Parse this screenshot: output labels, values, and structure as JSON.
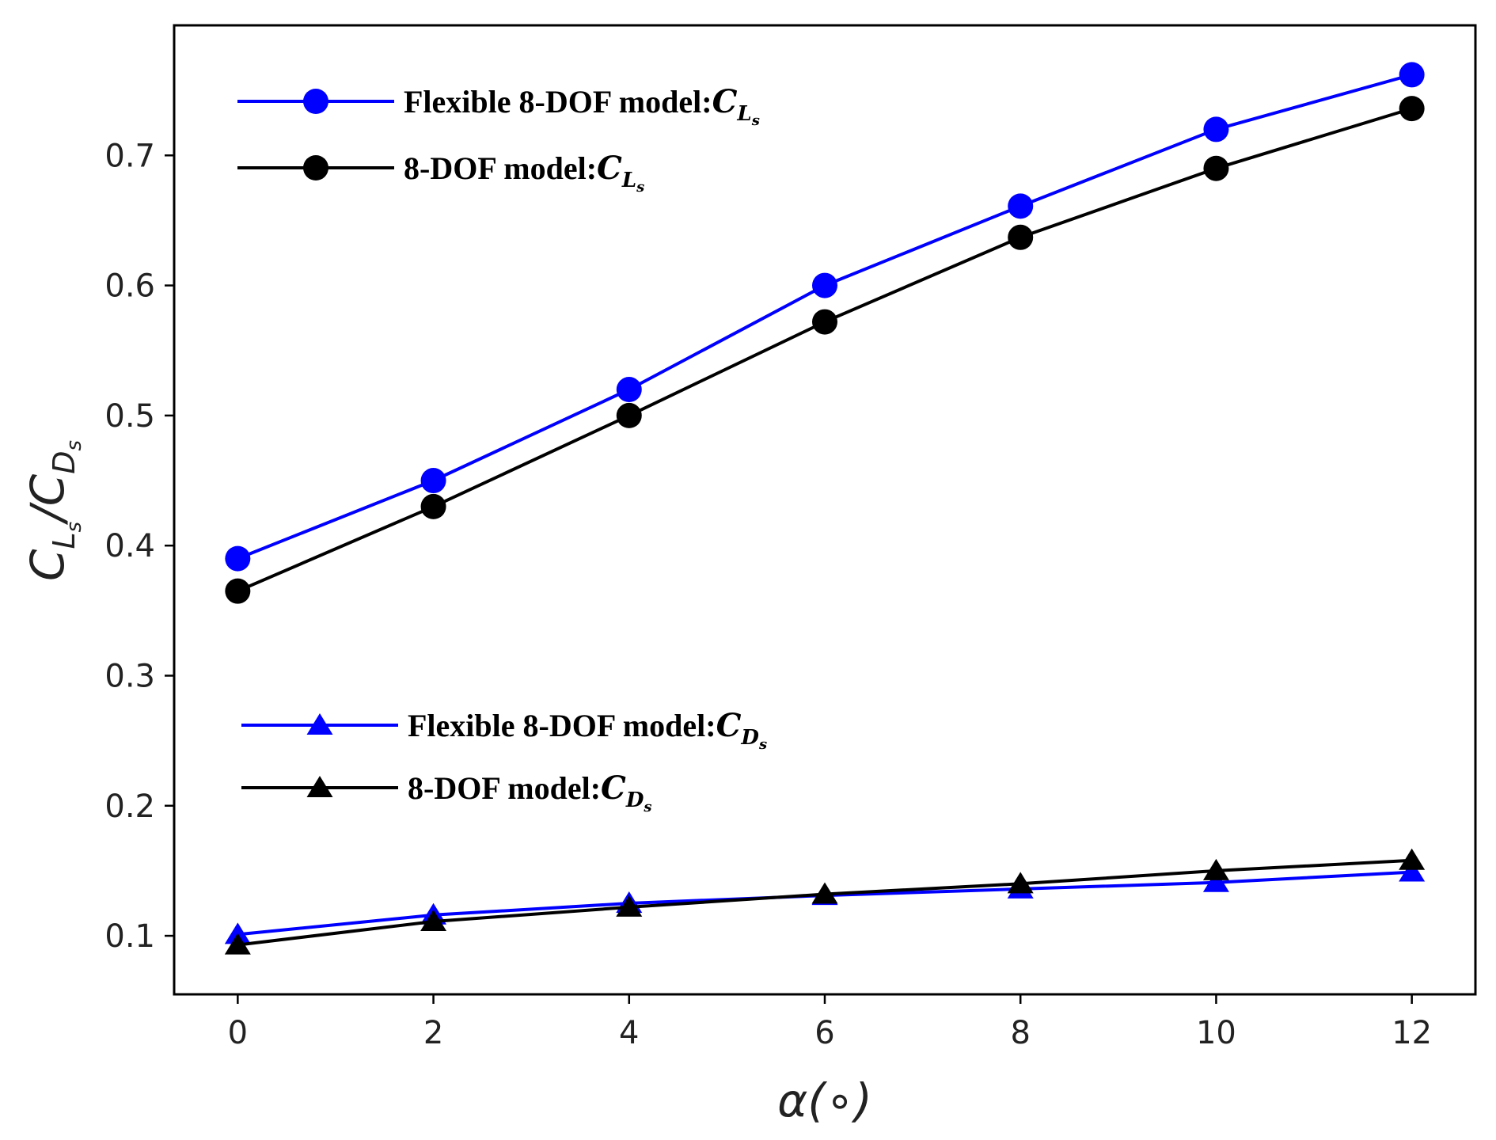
{
  "chart_data": {
    "type": "line",
    "title": "",
    "xlabel": "α(∘)",
    "ylabel_main": "C",
    "ylabel_sub1": "L",
    "ylabel_subsub1": "s",
    "ylabel_slash": "/C",
    "ylabel_sub2": "D",
    "ylabel_subsub2": "s",
    "x": [
      0,
      2,
      4,
      6,
      8,
      10,
      12
    ],
    "xlim": [
      -0.65,
      12.65
    ],
    "ylim": [
      0.055,
      0.8
    ],
    "xticks": [
      "0",
      "2",
      "4",
      "6",
      "8",
      "10",
      "12"
    ],
    "xtick_values": [
      0,
      2,
      4,
      6,
      8,
      10,
      12
    ],
    "yticks": [
      "0.1",
      "0.2",
      "0.3",
      "0.4",
      "0.5",
      "0.6",
      "0.7"
    ],
    "ytick_values": [
      0.1,
      0.2,
      0.3,
      0.4,
      0.5,
      0.6,
      0.7
    ],
    "grid": false,
    "series": [
      {
        "name": "Flexible 8-DOF model:C_L_s",
        "legend_text": "Flexible 8-DOF model:",
        "legend_sym": "C",
        "legend_sub": "L",
        "legend_subsub": "s",
        "legend_group": "upper",
        "color": "#0000ff",
        "marker": "circle",
        "values": [
          0.39,
          0.45,
          0.52,
          0.6,
          0.661,
          0.72,
          0.762
        ]
      },
      {
        "name": "8-DOF model:C_L_s",
        "legend_text": "8-DOF model:",
        "legend_sym": "C",
        "legend_sub": "L",
        "legend_subsub": "s",
        "legend_group": "upper",
        "color": "#000000",
        "marker": "circle",
        "values": [
          0.365,
          0.43,
          0.5,
          0.572,
          0.637,
          0.69,
          0.736
        ]
      },
      {
        "name": "Flexible 8-DOF model:C_D_s",
        "legend_text": "Flexible 8-DOF model:",
        "legend_sym": "C",
        "legend_sub": "D",
        "legend_subsub": "s",
        "legend_group": "lower",
        "color": "#0000ff",
        "marker": "triangle",
        "values": [
          0.101,
          0.116,
          0.125,
          0.131,
          0.136,
          0.141,
          0.149
        ]
      },
      {
        "name": "8-DOF model:C_D_s",
        "legend_text": "8-DOF model:",
        "legend_sym": "C",
        "legend_sub": "D",
        "legend_subsub": "s",
        "legend_group": "lower",
        "color": "#000000",
        "marker": "triangle",
        "values": [
          0.093,
          0.111,
          0.122,
          0.132,
          0.14,
          0.15,
          0.158
        ]
      }
    ]
  }
}
